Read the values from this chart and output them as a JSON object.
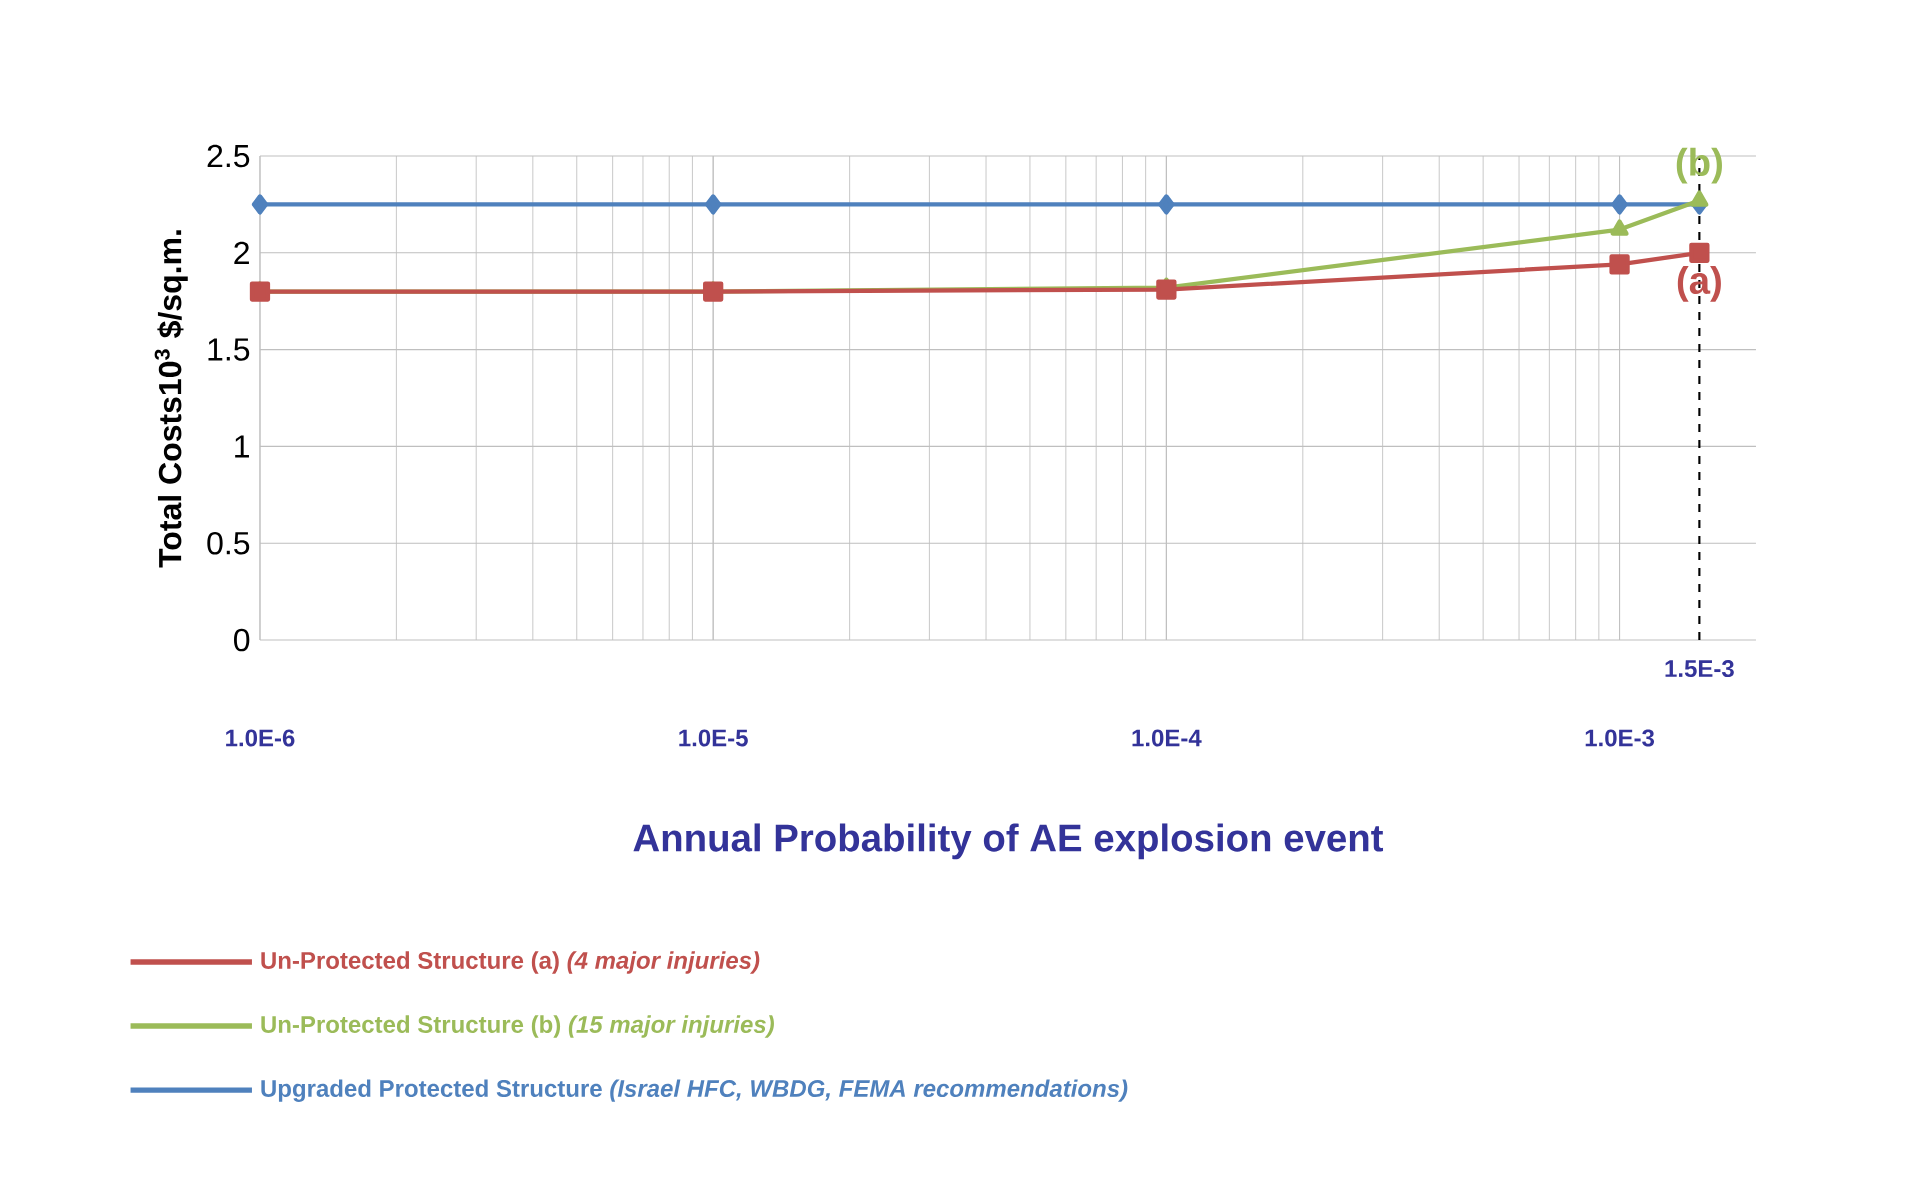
{
  "chart_data": {
    "type": "line",
    "xlabel": "Annual Probability of  AE explosion event",
    "ylabel": "Total Costs10$^{3}$ $/sq.m.",
    "x": [
      1e-06,
      1e-05,
      0.0001,
      0.001,
      0.0015
    ],
    "series": [
      {
        "name": "Un-Protected Structure (a) *(4 major injuries)*",
        "color": "#c0504d",
        "marker": "square",
        "values": [
          1.8,
          1.8,
          1.81,
          1.94,
          2.0
        ]
      },
      {
        "name": "Un-Protected Structure (b) *(15 major injuries)*",
        "color": "#9bbb59",
        "marker": "triangle",
        "values": [
          1.8,
          1.8,
          1.82,
          2.12,
          2.27
        ]
      },
      {
        "name": "Upgraded Protected Structure *(Israel HFC, WBDG, FEMA recommendations)*",
        "color": "#4f81bd",
        "marker": "diamond",
        "values": [
          2.25,
          2.25,
          2.25,
          2.25,
          2.25
        ]
      }
    ],
    "log": "x",
    "xlim": [
      1e-06,
      0.002
    ],
    "ylim": [
      0,
      2.5
    ],
    "xticks": [
      {
        "value": 1e-06,
        "label": "1.0E-6"
      },
      {
        "value": 1e-05,
        "label": "1.0E-5"
      },
      {
        "value": 0.0001,
        "label": "1.0E-4"
      },
      {
        "value": 0.001,
        "label": "1.0E-3"
      }
    ],
    "yticks": [
      0,
      0.5,
      1,
      1.5,
      2,
      2.5
    ],
    "ref_lines": [
      {
        "axis": "x",
        "value": 0.0015,
        "label": "1.5E-3",
        "color": "#000000",
        "line_style": "dashed"
      }
    ],
    "annotations": [
      {
        "text": "(a)",
        "x": 0.0015,
        "y": 1.84
      },
      {
        "text": "(b)",
        "x": 0.0015,
        "y": 2.45
      }
    ],
    "grid": true,
    "legend": "bottom",
    "line_style": "solid"
  }
}
